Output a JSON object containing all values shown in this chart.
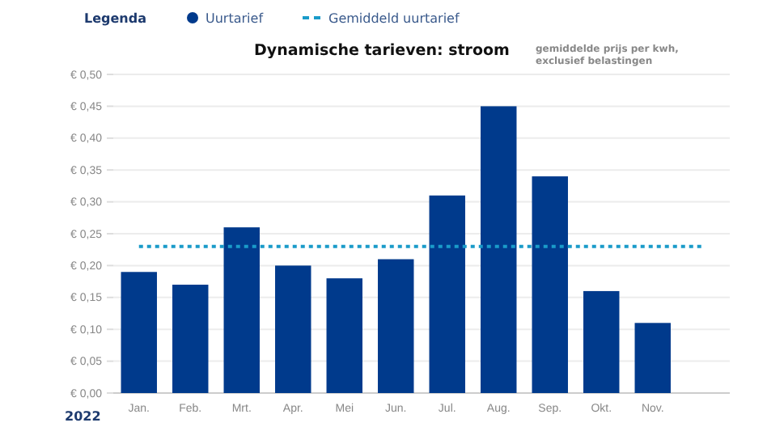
{
  "chart_data": {
    "type": "bar",
    "title": "Dynamische tarieven: stroom",
    "subtitle": "gemiddelde prijs per kwh, exclusief belastingen",
    "legend_title": "Legenda",
    "categories": [
      "Jan.",
      "Feb.",
      "Mrt.",
      "Apr.",
      "Mei",
      "Jun.",
      "Jul.",
      "Aug.",
      "Sep.",
      "Okt.",
      "Nov.",
      null
    ],
    "series": [
      {
        "name": "Uurtarief",
        "color": "#003a8c",
        "values": [
          0.19,
          0.17,
          0.26,
          0.2,
          0.18,
          0.21,
          0.31,
          0.45,
          0.34,
          0.16,
          0.11,
          null
        ]
      }
    ],
    "ylim": [
      0,
      0.5
    ],
    "yticks": [
      {
        "value": 0,
        "label": "€ 0,00"
      },
      {
        "value": 0.05,
        "label": "€ 0,05"
      },
      {
        "value": 0.1,
        "label": "€ 0,10"
      },
      {
        "value": 0.15,
        "label": "€ 0,15"
      },
      {
        "value": 0.2,
        "label": "€ 0,20"
      },
      {
        "value": 0.25,
        "label": "€ 0,25"
      },
      {
        "value": 0.3,
        "label": "€ 0,30"
      },
      {
        "value": 0.35,
        "label": "€ 0,35"
      },
      {
        "value": 0.4,
        "label": "€ 0,40"
      },
      {
        "value": 0.45,
        "label": "€ 0,45"
      },
      {
        "value": 0.5,
        "label": "€ 0,50"
      }
    ],
    "ref_lines": [
      {
        "axis": "y",
        "value": 0.23,
        "label": "Gemiddeld uurtarief",
        "color": "#1a9bc9",
        "line_style": "dotted"
      }
    ],
    "annotations": [
      "2022"
    ],
    "grid": "y",
    "legend": "top left"
  }
}
